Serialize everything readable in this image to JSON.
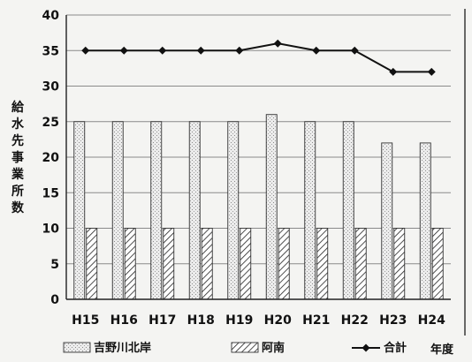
{
  "chart_data": {
    "type": "bar",
    "categories": [
      "H15",
      "H16",
      "H17",
      "H18",
      "H19",
      "H20",
      "H21",
      "H22",
      "H23",
      "H24"
    ],
    "series": [
      {
        "name": "吉野川北岸",
        "kind": "bar",
        "pattern": "dots",
        "values": [
          25,
          25,
          25,
          25,
          25,
          26,
          25,
          25,
          22,
          22
        ]
      },
      {
        "name": "阿南",
        "kind": "bar",
        "pattern": "hatch",
        "values": [
          10,
          10,
          10,
          10,
          10,
          10,
          10,
          10,
          10,
          10
        ]
      },
      {
        "name": "合計",
        "kind": "line",
        "marker": "diamond",
        "values": [
          35,
          35,
          35,
          35,
          35,
          36,
          35,
          35,
          32,
          32
        ]
      }
    ],
    "ylabel": "給水先事業所数",
    "xlabel": "年度",
    "ylim": [
      0,
      40
    ],
    "yticks": [
      0,
      5,
      10,
      15,
      20,
      25,
      30,
      35,
      40
    ],
    "grid": true,
    "legend_position": "bottom"
  }
}
